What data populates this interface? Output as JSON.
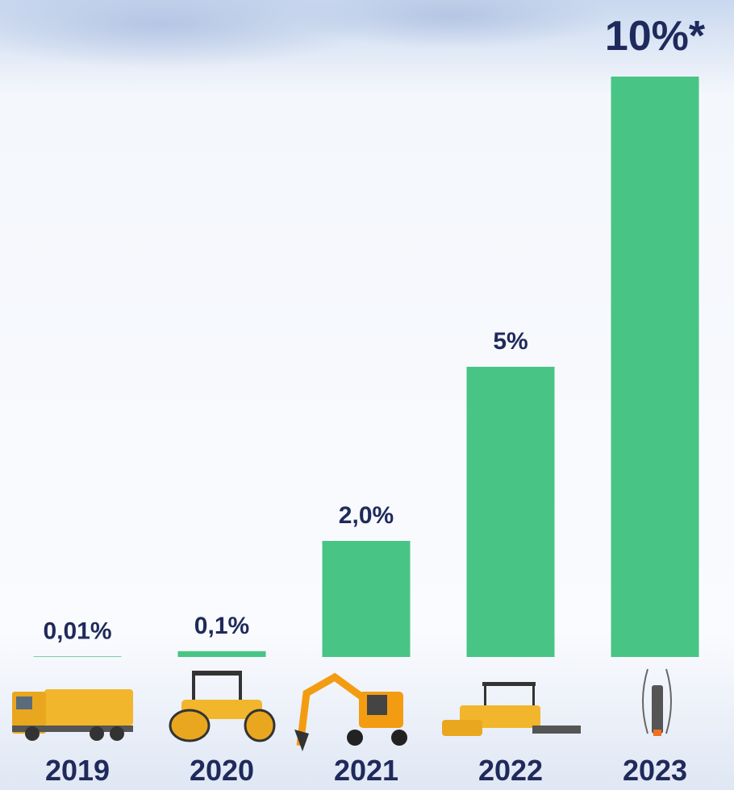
{
  "chart_data": {
    "type": "bar",
    "categories": [
      "2019",
      "2020",
      "2021",
      "2022",
      "2023"
    ],
    "values": [
      0.01,
      0.1,
      2.0,
      5,
      10
    ],
    "value_labels": [
      "0,01%",
      "0,1%",
      "2,0%",
      "5%",
      "10%*"
    ],
    "color": "#48c585",
    "ylim": [
      0,
      10
    ]
  }
}
